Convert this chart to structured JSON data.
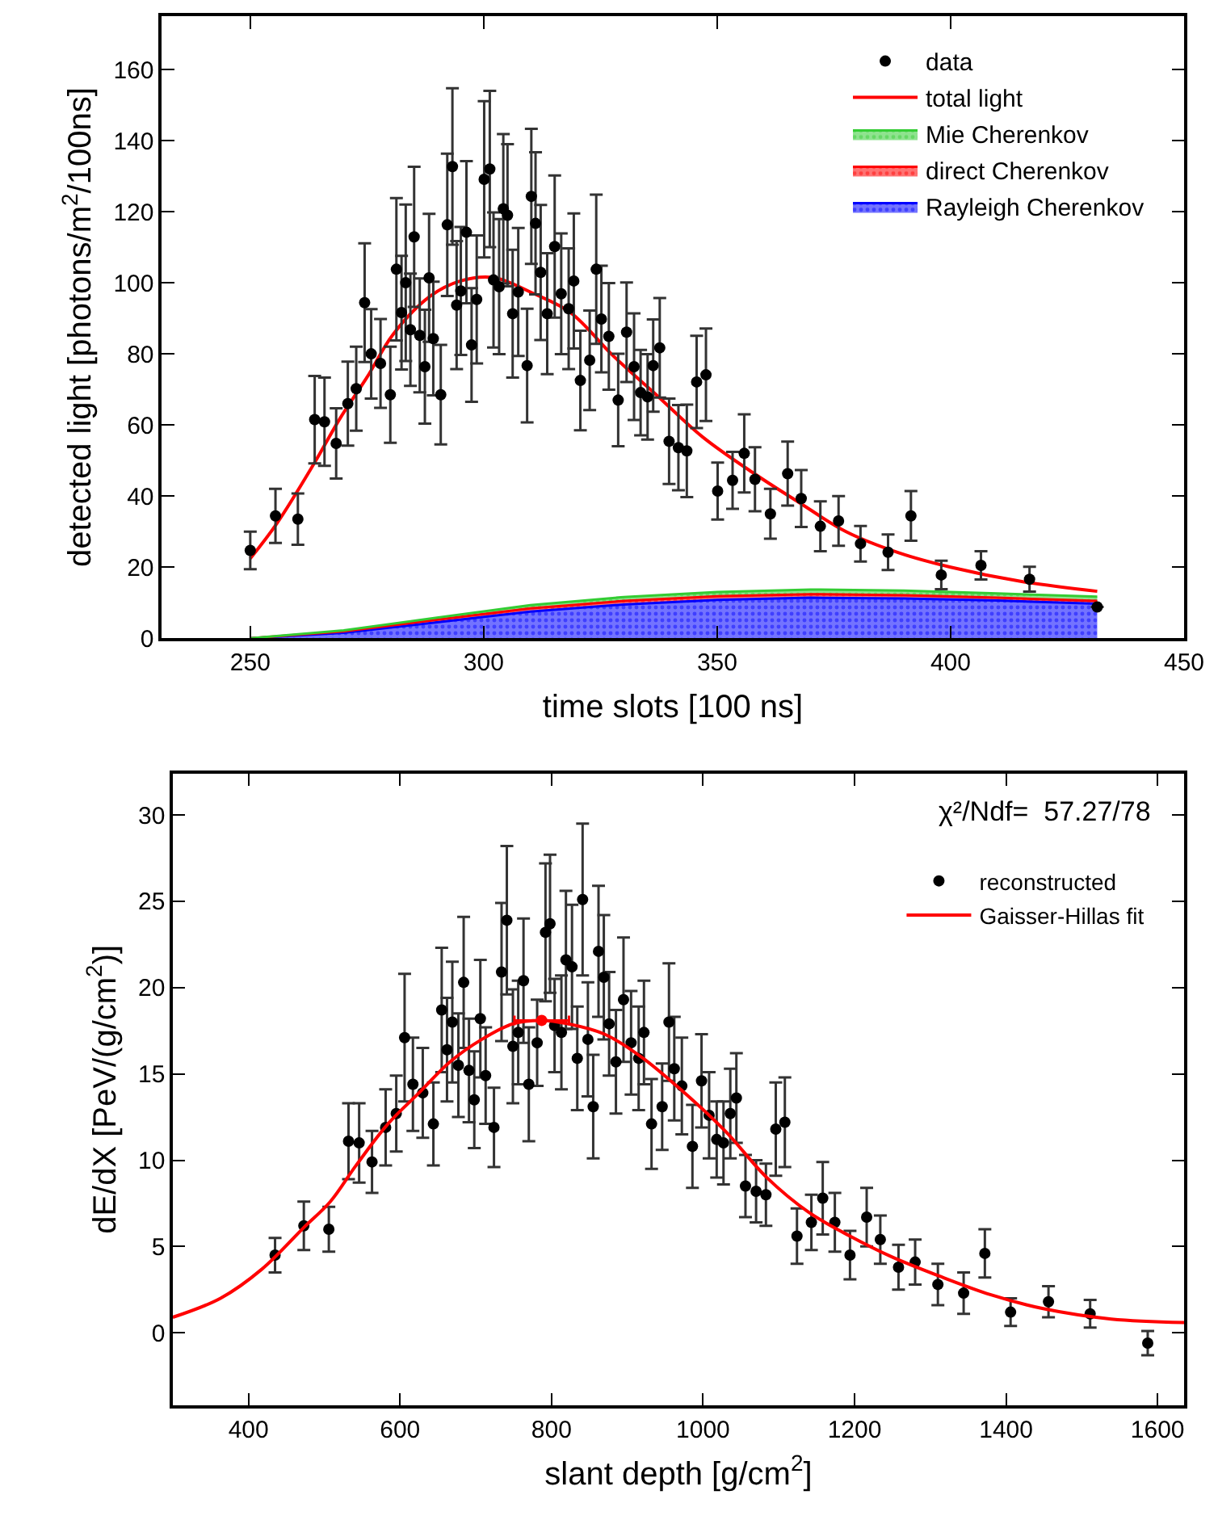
{
  "chart_data": [
    {
      "type": "scatter",
      "xlabel": "time slots [100 ns]",
      "ylabel": "detected light [photons/m$^{2}$/100ns]",
      "xlim": [
        231,
        450
      ],
      "ylim": [
        0,
        175
      ],
      "xticks": [
        250,
        300,
        350,
        400,
        450
      ],
      "yticks": [
        0,
        20,
        40,
        60,
        80,
        100,
        120,
        140,
        160
      ],
      "legend": "top right",
      "stacked": true,
      "series": [
        {
          "name": "Rayleigh Cherenkov",
          "type": "area",
          "color": "#0000ff",
          "x": [
            250,
            270,
            290,
            310,
            330,
            350,
            370,
            390,
            410,
            431.4
          ],
          "values": [
            0,
            1.5,
            4.5,
            7.5,
            9.5,
            10.8,
            11.4,
            11.2,
            10.6,
            9.7
          ]
        },
        {
          "name": "direct Cherenkov",
          "type": "area",
          "color": "#ff0000",
          "x": [
            250,
            270,
            290,
            310,
            330,
            350,
            370,
            390,
            410,
            431.4
          ],
          "values": [
            0,
            0.4,
            0.7,
            0.9,
            1,
            1,
            1,
            0.9,
            0.8,
            0.8
          ]
        },
        {
          "name": "Mie Cherenkov",
          "type": "area",
          "color": "#33cc33",
          "x": [
            250,
            270,
            290,
            310,
            330,
            350,
            370,
            390,
            410,
            431.4
          ],
          "values": [
            0,
            0.3,
            0.6,
            0.9,
            1.1,
            1.2,
            1.3,
            1.3,
            1.2,
            1.2
          ]
        },
        {
          "name": "total light",
          "type": "line",
          "color": "#ff0000",
          "x": [
            250,
            255.7,
            263.6,
            269.3,
            275,
            280.6,
            288.5,
            295,
            302,
            310.6,
            318.6,
            327.7,
            336.7,
            346.9,
            358.3,
            367.3,
            377.6,
            389,
            400,
            415,
            431.4
          ],
          "values": [
            22.4,
            32.3,
            49,
            62,
            73.4,
            85.5,
            96.2,
            100.5,
            101.5,
            97,
            91.6,
            79.5,
            68.8,
            56.6,
            46,
            38.4,
            30,
            24,
            20,
            16,
            13.2
          ]
        },
        {
          "name": "data",
          "marker": "circle",
          "color": "#000000",
          "x": [
            250,
            255.4,
            260.2,
            263.8,
            265.9,
            268.4,
            270.9,
            272.7,
            274.5,
            275.9,
            277.9,
            280,
            281.3,
            282.4,
            283.3,
            284.3,
            285.1,
            286.3,
            287.4,
            288.3,
            289.2,
            290.8,
            292.2,
            293.3,
            294.2,
            295.1,
            296.3,
            297.4,
            298.5,
            300.1,
            301.3,
            302.1,
            303.3,
            304.2,
            305.1,
            306.2,
            307.4,
            309.3,
            310.2,
            311.1,
            312.2,
            313.6,
            315.2,
            316.6,
            318.2,
            319.3,
            320.7,
            322.7,
            324.1,
            325.2,
            326.8,
            328.8,
            330.6,
            332.2,
            333.6,
            335.1,
            336.3,
            337.7,
            339.7,
            341.7,
            343.5,
            345.6,
            347.6,
            350.1,
            353.3,
            355.8,
            358.1,
            361.4,
            365.1,
            368,
            372.1,
            376,
            380.7,
            386.6,
            391.5,
            398,
            406.5,
            416.9,
            431.4
          ],
          "values": [
            24.7,
            34.4,
            33.5,
            61.5,
            60.9,
            54.8,
            66,
            70.2,
            94.4,
            80,
            77.3,
            68.5,
            103.8,
            91.6,
            100,
            86.8,
            112.9,
            85.2,
            76.4,
            101.4,
            84.3,
            68.5,
            116.3,
            132.7,
            93.7,
            97.7,
            114.2,
            82.5,
            95.3,
            129.1,
            132,
            100.8,
            98.9,
            120.8,
            119,
            91.3,
            97.4,
            76.7,
            124.3,
            116.7,
            102.9,
            91.3,
            110.2,
            96.9,
            92.7,
            100.5,
            72.5,
            78.2,
            103.8,
            89.8,
            84.9,
            67,
            86.1,
            76.4,
            69.1,
            67.9,
            76.7,
            81.7,
            55.4,
            53.6,
            52.7,
            72.1,
            74.1,
            41.4,
            44.4,
            52,
            44.7,
            35,
            46.3,
            39.3,
            31.5,
            33,
            26.6,
            24.2,
            34.4,
            17.8,
            20.5,
            16.6,
            8.8
          ],
          "errors": [
            5.3,
            7.6,
            7.2,
            12.3,
            12.4,
            9.9,
            11.8,
            11.8,
            16.7,
            12.6,
            12.5,
            13.5,
            20,
            16,
            22,
            15.8,
            19.7,
            16,
            16,
            18,
            16,
            14,
            20,
            22,
            18,
            18,
            20,
            16,
            18,
            22,
            22,
            19,
            19,
            21,
            20,
            18,
            18,
            16,
            19,
            20,
            19,
            17,
            20,
            17,
            17,
            19,
            14,
            14,
            21,
            15,
            15,
            13,
            14,
            15,
            12,
            12,
            13,
            14,
            12,
            12,
            13,
            13,
            13,
            8,
            8,
            11,
            9,
            7,
            9,
            8,
            7,
            7,
            5,
            5,
            7,
            4,
            4,
            3.5,
            null
          ]
        }
      ]
    },
    {
      "type": "scatter",
      "xlabel": "slant depth [g/cm$^{2}$]",
      "ylabel": "dE/dX [PeV/(g/cm$^{2}$)]",
      "xlim": [
        300,
        1635
      ],
      "ylim": [
        -4.2,
        32.4
      ],
      "xticks": [
        400,
        600,
        800,
        1000,
        1200,
        1400,
        1600
      ],
      "yticks": [
        0,
        5,
        10,
        15,
        20,
        25,
        30
      ],
      "legend": "top right",
      "annotations": [
        "χ²/Ndf=  57.27/78"
      ],
      "series": [
        {
          "name": "reconstructed",
          "marker": "circle",
          "color": "#000000",
          "x": [
            435,
            473,
            506,
            532,
            546,
            563,
            581,
            595,
            606,
            617,
            630,
            644,
            655,
            662,
            669,
            677,
            684,
            691,
            698,
            706,
            713,
            724,
            734,
            741,
            749,
            756,
            763,
            770,
            781,
            792,
            798,
            804,
            813,
            819,
            827,
            834,
            841,
            848,
            855,
            862,
            869,
            876,
            885,
            895,
            905,
            915,
            922,
            932,
            946,
            955,
            962,
            972,
            986,
            998,
            1008,
            1018,
            1027,
            1036,
            1044,
            1056,
            1070,
            1083,
            1096,
            1108,
            1124,
            1143,
            1158,
            1174,
            1194,
            1216,
            1234,
            1258,
            1280,
            1310,
            1344,
            1372,
            1406,
            1456,
            1511,
            1587
          ],
          "values": [
            4.5,
            6.2,
            6.0,
            11.1,
            11,
            9.9,
            11.9,
            12.7,
            17.1,
            14.4,
            13.9,
            12.1,
            18.7,
            16.4,
            18,
            15.5,
            20.3,
            15.2,
            13.5,
            18.2,
            14.9,
            11.9,
            20.9,
            23.9,
            16.6,
            17.4,
            20.4,
            14.4,
            16.8,
            23.2,
            23.7,
            17.8,
            17.4,
            21.6,
            21.2,
            15.9,
            25.1,
            17,
            13.1,
            22.1,
            20.6,
            17.9,
            15.7,
            19.3,
            16.8,
            15.9,
            17.4,
            12.1,
            13.1,
            18,
            15.3,
            14.3,
            10.8,
            14.6,
            12.6,
            11.2,
            11,
            12.7,
            13.6,
            8.5,
            8.2,
            8,
            11.8,
            12.2,
            5.6,
            6.4,
            7.8,
            6.4,
            4.5,
            6.7,
            5.4,
            3.8,
            4.1,
            2.8,
            2.3,
            4.6,
            1.2,
            1.8,
            1.1,
            -0.6
          ],
          "errors": [
            1,
            1.4,
            1.3,
            2.2,
            2.3,
            1.8,
            2.2,
            2.2,
            3.7,
            2.7,
            2.6,
            2.4,
            3.6,
            3,
            3.5,
            3,
            3.8,
            3,
            2.8,
            3.4,
            2.8,
            2.3,
            4,
            4.3,
            3.3,
            3,
            3.6,
            3.3,
            2.5,
            4,
            4,
            2.7,
            3.3,
            4,
            3.6,
            3,
            4.4,
            3.3,
            3,
            3.8,
            3.6,
            3,
            3,
            3.6,
            3,
            3,
            3,
            2.6,
            2.5,
            3.4,
            3,
            2.8,
            2.4,
            2.7,
            2.5,
            2.2,
            2.4,
            2.6,
            2.6,
            1.8,
            1.8,
            1.8,
            2.7,
            2.6,
            1.6,
            1.6,
            2.1,
            1.7,
            1.4,
            1.7,
            1.4,
            1.3,
            1.3,
            1.2,
            1.2,
            1.4,
            0.8,
            0.9,
            0.8,
            0.7
          ]
        },
        {
          "name": "Gaisser-Hillas fit",
          "type": "line",
          "color": "#ff0000",
          "x": [
            300,
            363,
            418,
            473,
            508,
            542,
            584,
            625,
            666,
            708,
            749,
            787,
            822,
            870,
            918,
            973,
            1029,
            1084,
            1139,
            1194,
            1249,
            1311,
            1380,
            1449,
            1539,
            1635
          ],
          "values": [
            0.9,
            2,
            3.7,
            6.1,
            7.6,
            9.7,
            12.1,
            13.9,
            15.7,
            17,
            17.9,
            18.1,
            17.9,
            17.3,
            16,
            14,
            11.7,
            9,
            7,
            5.6,
            4.4,
            3.3,
            2.2,
            1.4,
            0.8,
            0.6
          ]
        },
        {
          "marker": "circle",
          "color": "#ff0000",
          "x": [
            787
          ],
          "values": [
            18.1
          ],
          "xerrors": [
            36
          ]
        }
      ]
    }
  ]
}
